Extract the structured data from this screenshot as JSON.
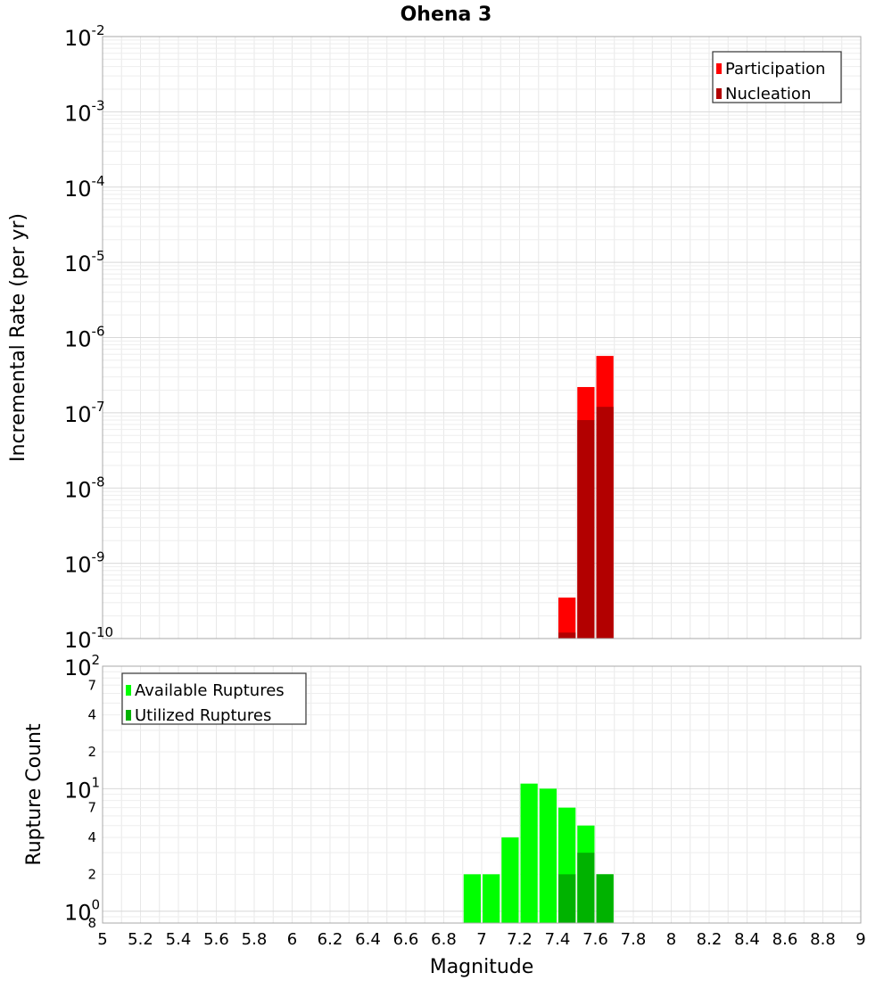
{
  "chart_data": [
    {
      "type": "bar",
      "title": "Ohena 3",
      "xlabel": "Magnitude",
      "ylabel": "Incremental Rate (per yr)",
      "yscale": "log",
      "xlim": [
        5,
        9
      ],
      "ylim": [
        1e-10,
        0.01
      ],
      "bin_width": 0.1,
      "grid": true,
      "legend_position": "top-right",
      "x_ticks": [
        "5",
        "5.2",
        "5.4",
        "5.6",
        "5.8",
        "6",
        "6.2",
        "6.4",
        "6.6",
        "6.8",
        "7",
        "7.2",
        "7.4",
        "7.6",
        "7.8",
        "8",
        "8.2",
        "8.4",
        "8.6",
        "8.8",
        "9"
      ],
      "y_ticks": [
        {
          "base": "10",
          "exp": "-2"
        },
        {
          "base": "10",
          "exp": "-3"
        },
        {
          "base": "10",
          "exp": "-4"
        },
        {
          "base": "10",
          "exp": "-5"
        },
        {
          "base": "10",
          "exp": "-6"
        },
        {
          "base": "10",
          "exp": "-7"
        },
        {
          "base": "10",
          "exp": "-8"
        },
        {
          "base": "10",
          "exp": "-9"
        },
        {
          "base": "10",
          "exp": "-10"
        }
      ],
      "series": [
        {
          "name": "Participation",
          "color": "#ff0000",
          "x": [
            7.45,
            7.55,
            7.65
          ],
          "values": [
            3.5e-10,
            2.2e-07,
            5.7e-07
          ]
        },
        {
          "name": "Nucleation",
          "color": "#b20000",
          "x": [
            7.45,
            7.55,
            7.65
          ],
          "values": [
            1.2e-10,
            8e-08,
            1.2e-07
          ]
        }
      ]
    },
    {
      "type": "bar",
      "xlabel": "Magnitude",
      "ylabel": "Rupture Count",
      "yscale": "log",
      "xlim": [
        5,
        9
      ],
      "ylim": [
        0.8,
        100
      ],
      "bin_width": 0.1,
      "grid": true,
      "legend_position": "top-left",
      "y_ticks": [
        {
          "base": "10",
          "exp": "2"
        },
        {
          "minor": "7"
        },
        {
          "minor": "4"
        },
        {
          "minor": "2"
        },
        {
          "base": "10",
          "exp": "1"
        },
        {
          "minor": "7"
        },
        {
          "minor": "4"
        },
        {
          "minor": "2"
        },
        {
          "base": "10",
          "exp": "0"
        },
        {
          "minor": "8"
        }
      ],
      "series": [
        {
          "name": "Available Ruptures",
          "color": "#00ff00",
          "x": [
            6.95,
            7.05,
            7.15,
            7.25,
            7.35,
            7.45,
            7.55,
            7.65
          ],
          "values": [
            2,
            2,
            4,
            11,
            10,
            7,
            5,
            2
          ]
        },
        {
          "name": "Utilized Ruptures",
          "color": "#00b200",
          "x": [
            7.45,
            7.55,
            7.65
          ],
          "values": [
            2,
            3,
            2
          ]
        }
      ]
    }
  ]
}
